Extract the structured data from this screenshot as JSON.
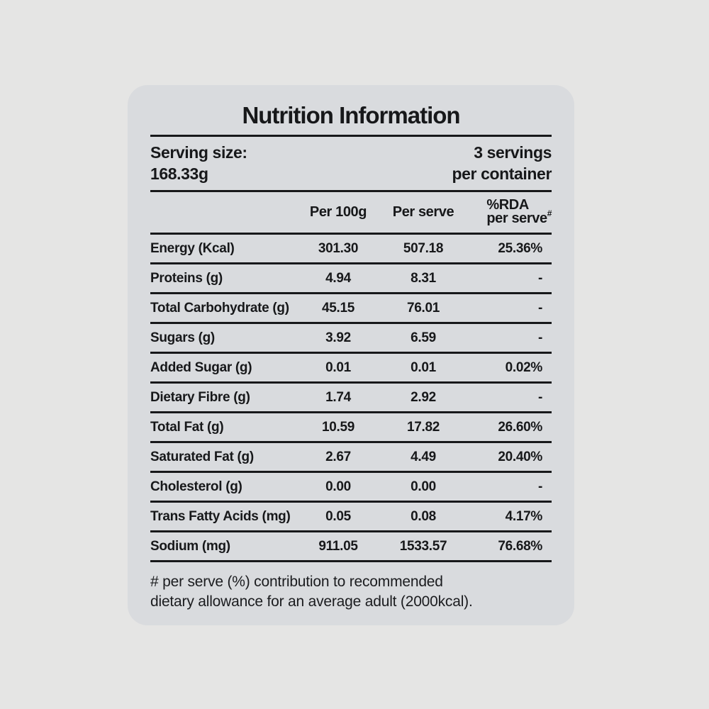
{
  "card": {
    "title": "Nutrition Information",
    "serving": {
      "size_label": "Serving size:",
      "size_value": "168.33g",
      "servings_line1": "3 servings",
      "servings_line2": "per container"
    },
    "table": {
      "columns": {
        "per_100g": "Per 100g",
        "per_serve": "Per serve",
        "rda_line1": "%RDA",
        "rda_line2": "per serve",
        "rda_sup": "#"
      },
      "rows": [
        {
          "label": "Energy (Kcal)",
          "per_100g": "301.30",
          "per_serve": "507.18",
          "rda": "25.36%"
        },
        {
          "label": "Proteins (g)",
          "per_100g": "4.94",
          "per_serve": "8.31",
          "rda": "-"
        },
        {
          "label": "Total Carbohydrate (g)",
          "per_100g": "45.15",
          "per_serve": "76.01",
          "rda": "-"
        },
        {
          "label": "Sugars (g)",
          "per_100g": "3.92",
          "per_serve": "6.59",
          "rda": "-"
        },
        {
          "label": "Added Sugar (g)",
          "per_100g": "0.01",
          "per_serve": "0.01",
          "rda": "0.02%"
        },
        {
          "label": "Dietary Fibre (g)",
          "per_100g": "1.74",
          "per_serve": "2.92",
          "rda": "-"
        },
        {
          "label": "Total Fat (g)",
          "per_100g": "10.59",
          "per_serve": "17.82",
          "rda": "26.60%"
        },
        {
          "label": "Saturated Fat (g)",
          "per_100g": "2.67",
          "per_serve": "4.49",
          "rda": "20.40%"
        },
        {
          "label": "Cholesterol (g)",
          "per_100g": "0.00",
          "per_serve": "0.00",
          "rda": "-"
        },
        {
          "label": "Trans Fatty Acids (mg)",
          "per_100g": "0.05",
          "per_serve": "0.08",
          "rda": "4.17%"
        },
        {
          "label": "Sodium (mg)",
          "per_100g": "911.05",
          "per_serve": "1533.57",
          "rda": "76.68%"
        }
      ]
    },
    "footnote_line1": "# per serve (%) contribution to recommended",
    "footnote_line2": "dietary allowance for an average adult (2000kcal).",
    "colors": {
      "background": "#e5e5e4",
      "card_background": "#d9dbde",
      "text": "#17181a",
      "rule": "#17181a"
    }
  }
}
